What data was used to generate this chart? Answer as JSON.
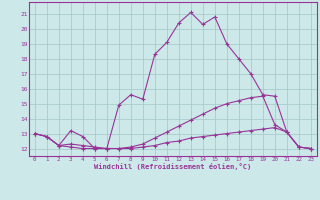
{
  "xlabel": "Windchill (Refroidissement éolien,°C)",
  "bg_color": "#cce8e8",
  "grid_color": "#aacccc",
  "line_color": "#993399",
  "xlim": [
    -0.5,
    23.5
  ],
  "ylim": [
    11.5,
    21.8
  ],
  "xticks": [
    0,
    1,
    2,
    3,
    4,
    5,
    6,
    7,
    8,
    9,
    10,
    11,
    12,
    13,
    14,
    15,
    16,
    17,
    18,
    19,
    20,
    21,
    22,
    23
  ],
  "yticks": [
    12,
    13,
    14,
    15,
    16,
    17,
    18,
    19,
    20,
    21
  ],
  "line1_x": [
    0,
    1,
    2,
    3,
    4,
    5,
    6,
    7,
    8,
    9,
    10,
    11,
    12,
    13,
    14,
    15,
    16,
    17,
    18,
    19,
    20,
    21,
    22,
    23
  ],
  "line1_y": [
    13.0,
    12.8,
    12.2,
    13.2,
    12.8,
    12.0,
    12.0,
    14.9,
    15.6,
    15.3,
    18.3,
    19.1,
    20.4,
    21.1,
    20.3,
    20.8,
    19.0,
    18.0,
    17.0,
    15.6,
    15.5,
    13.1,
    12.1,
    12.0
  ],
  "line2_x": [
    0,
    1,
    2,
    3,
    4,
    5,
    6,
    7,
    8,
    9,
    10,
    11,
    12,
    13,
    14,
    15,
    16,
    17,
    18,
    19,
    20,
    21,
    22,
    23
  ],
  "line2_y": [
    13.0,
    12.8,
    12.2,
    12.3,
    12.2,
    12.1,
    12.0,
    12.0,
    12.1,
    12.3,
    12.7,
    13.1,
    13.5,
    13.9,
    14.3,
    14.7,
    15.0,
    15.2,
    15.4,
    15.5,
    13.6,
    13.1,
    12.1,
    12.0
  ],
  "line3_x": [
    0,
    1,
    2,
    3,
    4,
    5,
    6,
    7,
    8,
    9,
    10,
    11,
    12,
    13,
    14,
    15,
    16,
    17,
    18,
    19,
    20,
    21,
    22,
    23
  ],
  "line3_y": [
    13.0,
    12.8,
    12.2,
    12.1,
    12.0,
    12.0,
    12.0,
    12.0,
    12.0,
    12.1,
    12.2,
    12.4,
    12.5,
    12.7,
    12.8,
    12.9,
    13.0,
    13.1,
    13.2,
    13.3,
    13.4,
    13.1,
    12.1,
    12.0
  ]
}
